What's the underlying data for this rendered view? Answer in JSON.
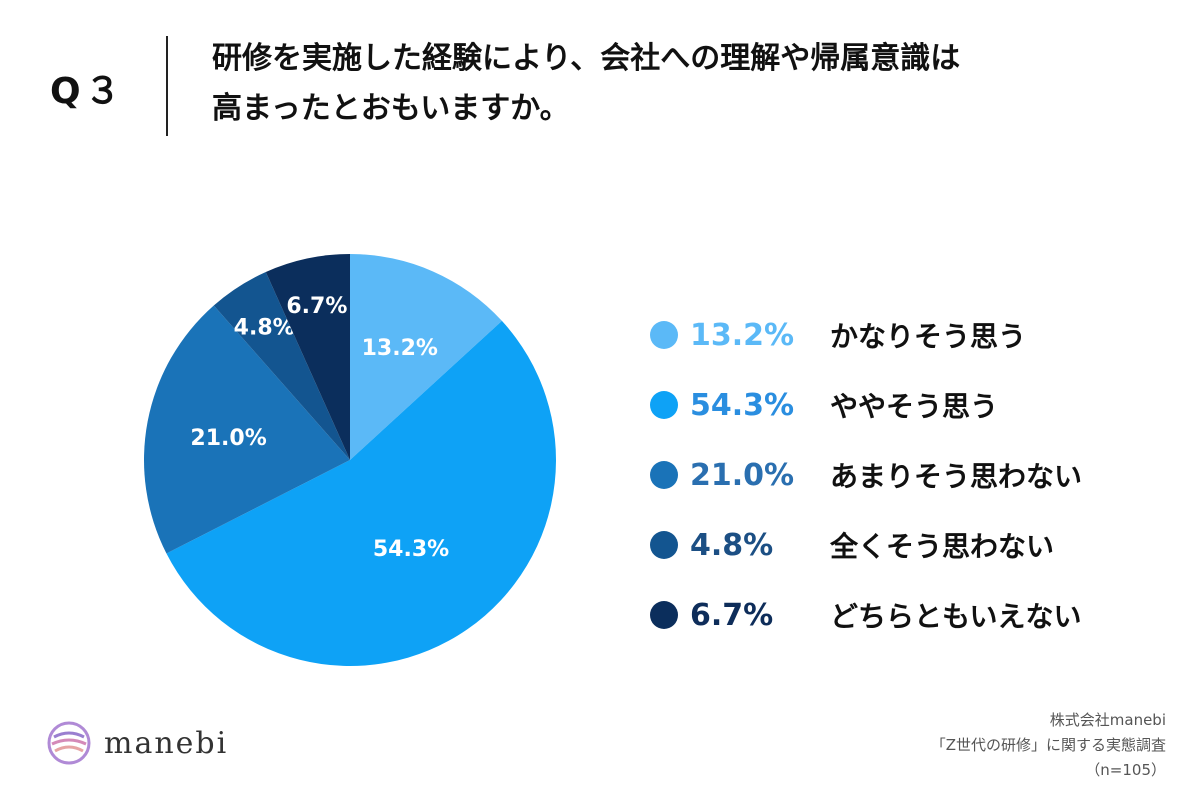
{
  "header": {
    "q_number": "Q３",
    "question_line1": "研修を実施した経験により、会社への理解や帰属意識は",
    "question_line2": "高まったとおもいますか。"
  },
  "chart_data": {
    "type": "pie",
    "title": "研修を実施した経験により、会社への理解や帰属意識は高まったとおもいますか。",
    "start_angle_deg": 0,
    "direction": "clockwise",
    "slices": [
      {
        "label": "かなりそう思う",
        "value": 13.2,
        "display": "13.2%",
        "color": "#5bb9f7",
        "text_color": "#5bb9f7"
      },
      {
        "label": "ややそう思う",
        "value": 54.3,
        "display": "54.3%",
        "color": "#0ea2f6",
        "text_color": "#2a8ee0"
      },
      {
        "label": "あまりそう思わない",
        "value": 21.0,
        "display": "21.0%",
        "color": "#1a73b8",
        "text_color": "#2a6fb0"
      },
      {
        "label": "全くそう思わない",
        "value": 4.8,
        "display": "4.8%",
        "color": "#135590",
        "text_color": "#1c4f84"
      },
      {
        "label": "どちらともいえない",
        "value": 6.7,
        "display": "6.7%",
        "color": "#0b2e5c",
        "text_color": "#0e2d5a"
      }
    ],
    "legend_position": "right"
  },
  "branding": {
    "logo_text": "manebi"
  },
  "footer": {
    "source_line1": "株式会社manebi",
    "source_line2": "「Z世代の研修」に関する実態調査",
    "source_line3": "（n=105）"
  }
}
